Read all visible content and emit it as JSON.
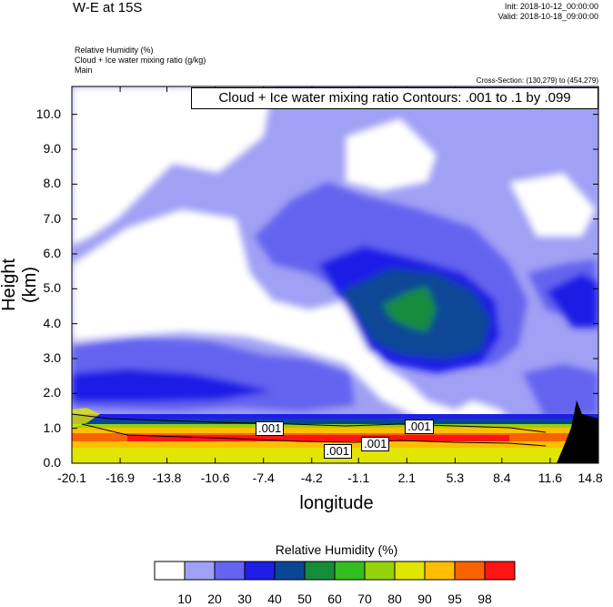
{
  "header": {
    "title": "W-E at 15S",
    "init": "Init: 2018-10-12_00:00:00",
    "valid": "Valid: 2018-10-18_09:00:00"
  },
  "variables": [
    "Relative Humidity   (%)",
    "Cloud + Ice water mixing ratio   (g/kg)",
    "Main"
  ],
  "cross_section": "Cross-Section: (130,279) to (454,279)",
  "contour_info": "Cloud + Ice water mixing ratio Contours: .001 to .1 by .099",
  "colorbar": {
    "title": "Relative Humidity  (%)",
    "labels": [
      "10",
      "20",
      "30",
      "40",
      "50",
      "60",
      "70",
      "80",
      "90",
      "95",
      "98"
    ],
    "colors": [
      "#ffffff",
      "#a0a0f5",
      "#6464f0",
      "#1e1ee6",
      "#0a4696",
      "#148c3c",
      "#32be1e",
      "#96d20a",
      "#e1e600",
      "#ffbe00",
      "#fa6400",
      "#ff1414"
    ]
  },
  "chart_data": {
    "type": "heatmap",
    "xlabel": "longitude",
    "ylabel": "Height (km)",
    "xticks": [
      "-20.1",
      "-16.9",
      "-13.8",
      "-10.6",
      "-7.4",
      "-4.2",
      "-1.1",
      "2.1",
      "5.3",
      "8.4",
      "11.6",
      "14.8"
    ],
    "yticks": [
      "0.0",
      "1.0",
      "2.0",
      "3.0",
      "4.0",
      "5.0",
      "6.0",
      "7.0",
      "8.0",
      "9.0",
      "10.0"
    ],
    "xlim": [
      -20.1,
      14.8
    ],
    "ylim": [
      0.0,
      10.8
    ],
    "contour_labels": [
      {
        "text": ".001",
        "x": -6.9,
        "y": 1.0
      },
      {
        "text": ".001",
        "x": -2.4,
        "y": 0.35
      },
      {
        "text": ".001",
        "x": 0.1,
        "y": 0.55
      },
      {
        "text": ".001",
        "x": 3.0,
        "y": 1.05
      }
    ]
  }
}
